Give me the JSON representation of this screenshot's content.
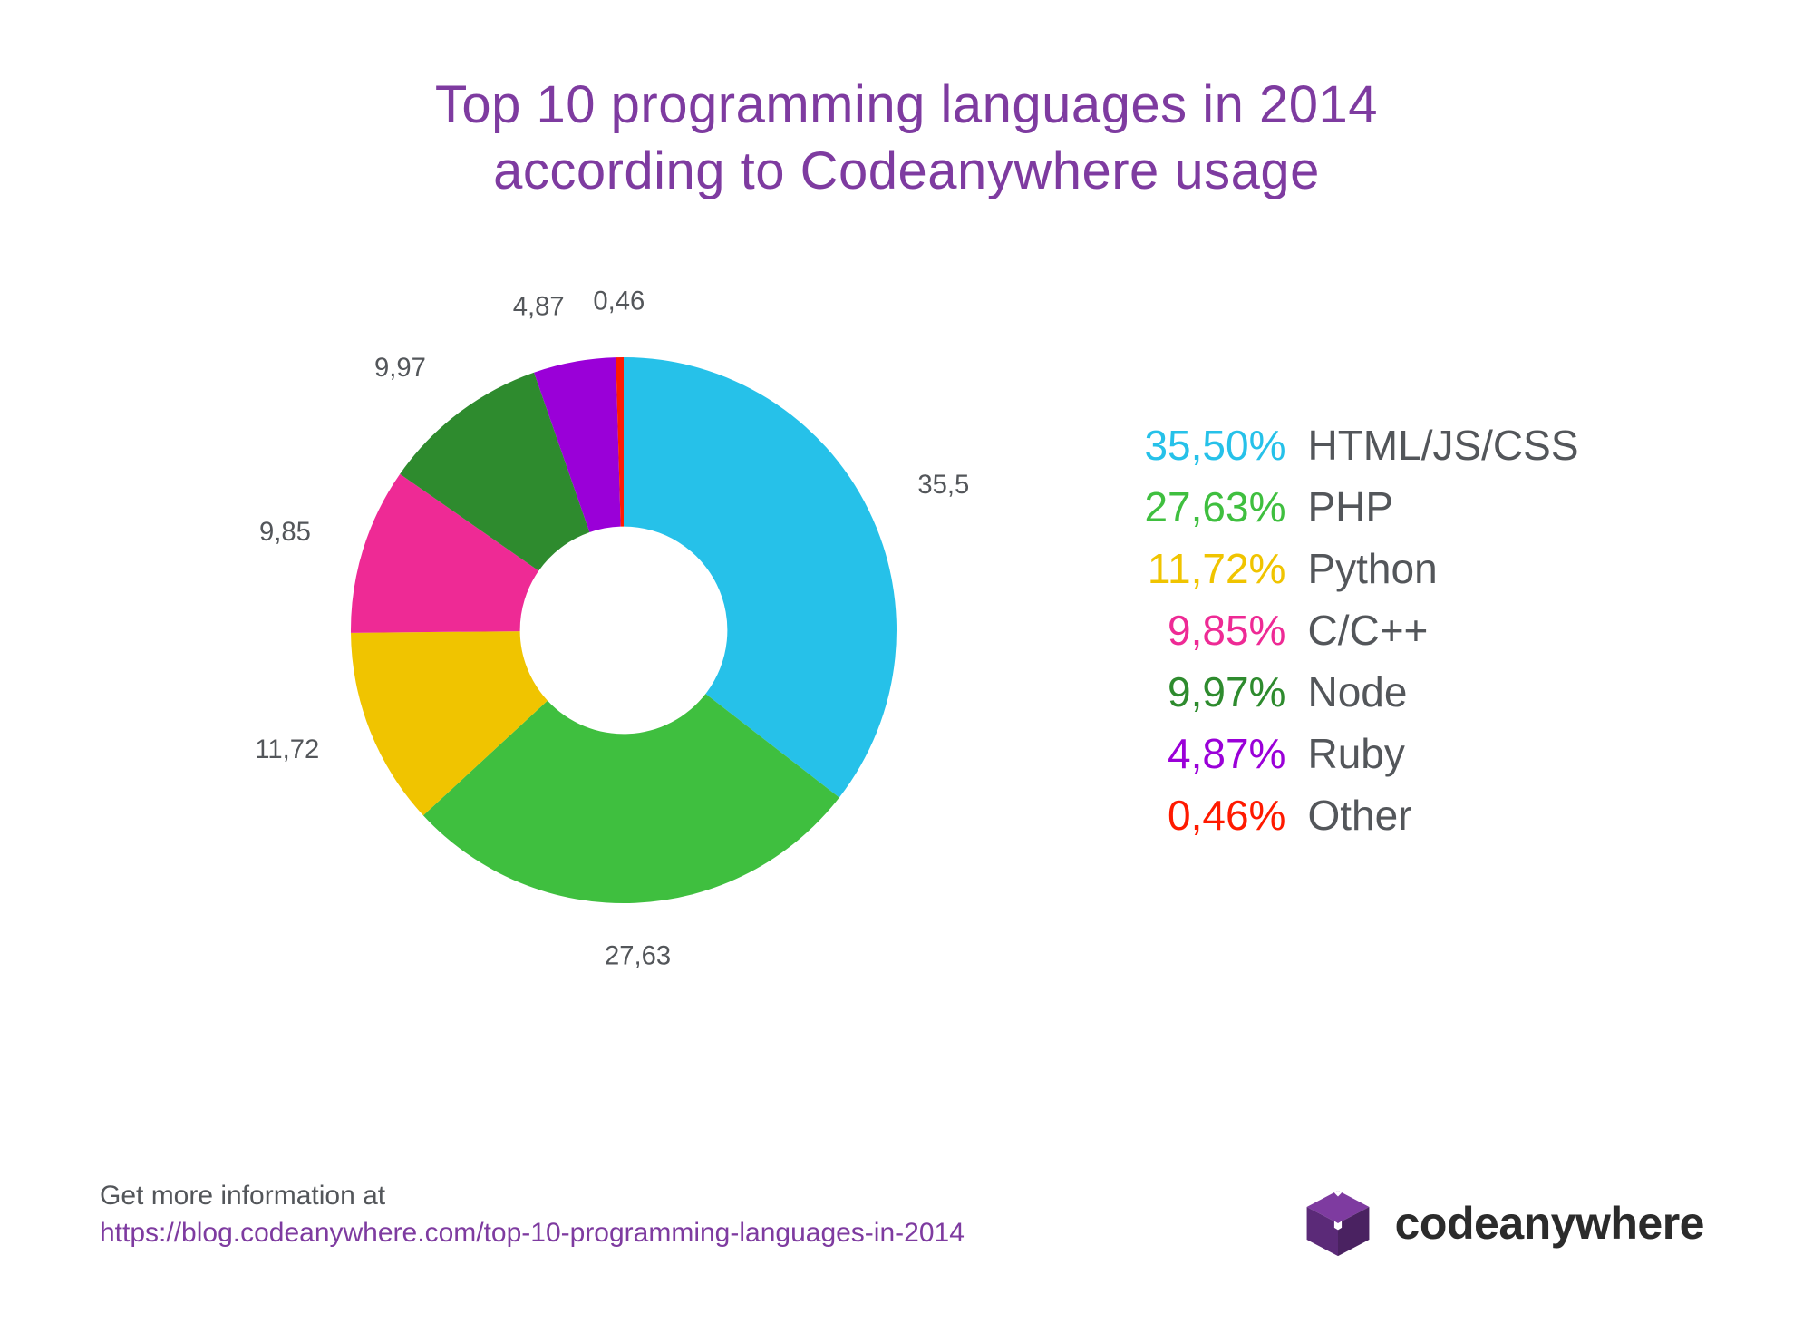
{
  "title_line1": "Top 10 programming languages in 2014",
  "title_line2": "according to Codeanywhere usage",
  "title_color": "#7e3ba0",
  "chart": {
    "type": "donut",
    "inner_radius_ratio": 0.38,
    "background_color": "#ffffff",
    "start_angle_deg": 0,
    "label_fontsize": 34,
    "label_color": "#53565a",
    "slices": [
      {
        "name": "HTML/JS/CSS",
        "value": 35.5,
        "display": "35,5",
        "pct_display": "35,50%",
        "color": "#26c1e9"
      },
      {
        "name": "PHP",
        "value": 27.63,
        "display": "27,63",
        "pct_display": "27,63%",
        "color": "#3fbf3f"
      },
      {
        "name": "Python",
        "value": 11.72,
        "display": "11,72",
        "pct_display": "11,72%",
        "color": "#f0c400"
      },
      {
        "name": "C/C++",
        "value": 9.85,
        "display": "9,85",
        "pct_display": "9,85%",
        "color": "#ee2a95"
      },
      {
        "name": "Node",
        "value": 9.97,
        "display": "9,97",
        "pct_display": "9,97%",
        "color": "#2e8b2e"
      },
      {
        "name": "Ruby",
        "value": 4.87,
        "display": "4,87",
        "pct_display": "4,87%",
        "color": "#9a00d8"
      },
      {
        "name": "Other",
        "value": 0.46,
        "display": "0,46",
        "pct_display": "0,46%",
        "color": "#ff1a00"
      }
    ]
  },
  "legend": {
    "fontsize": 46,
    "name_color": "#53565a"
  },
  "footer": {
    "label": "Get more information at",
    "link": "https://blog.codeanywhere.com/top-10-programming-languages-in-2014",
    "label_color": "#53565a",
    "link_color": "#7e3ba0"
  },
  "brand": {
    "name": "codeanywhere",
    "text_color": "#2b2b2b",
    "cube_colors": {
      "top": "#7e3ba0",
      "left": "#5b2a78",
      "right": "#4a2261",
      "highlight": "#ffffff"
    }
  }
}
